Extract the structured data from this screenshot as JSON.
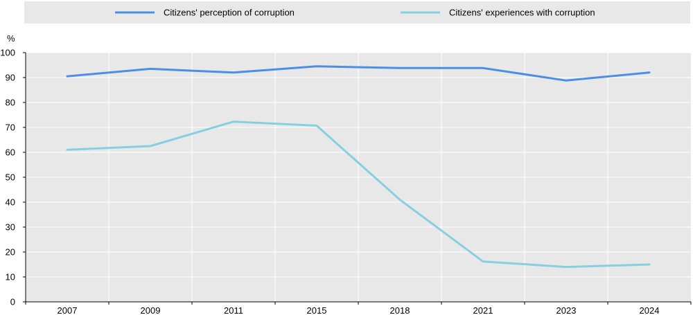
{
  "chart_data": {
    "type": "line",
    "ylabel": "%",
    "ylim": [
      0,
      100
    ],
    "yticks": [
      0,
      10,
      20,
      30,
      40,
      50,
      60,
      70,
      80,
      90,
      100
    ],
    "categories": [
      "2007",
      "2009",
      "2011",
      "2015",
      "2018",
      "2021",
      "2023",
      "2024"
    ],
    "grid": true,
    "legend_position": "top",
    "series": [
      {
        "name": "Citizens' perception of corruption",
        "color": "#4a8fe4",
        "values": [
          90.5,
          93.5,
          92.0,
          94.5,
          93.8,
          93.8,
          88.8,
          92.0
        ]
      },
      {
        "name": "Citizens' experiences with corruption",
        "color": "#85d0e0",
        "values": [
          61.0,
          62.5,
          72.3,
          70.7,
          41.0,
          16.2,
          14.0,
          15.0
        ]
      }
    ]
  }
}
